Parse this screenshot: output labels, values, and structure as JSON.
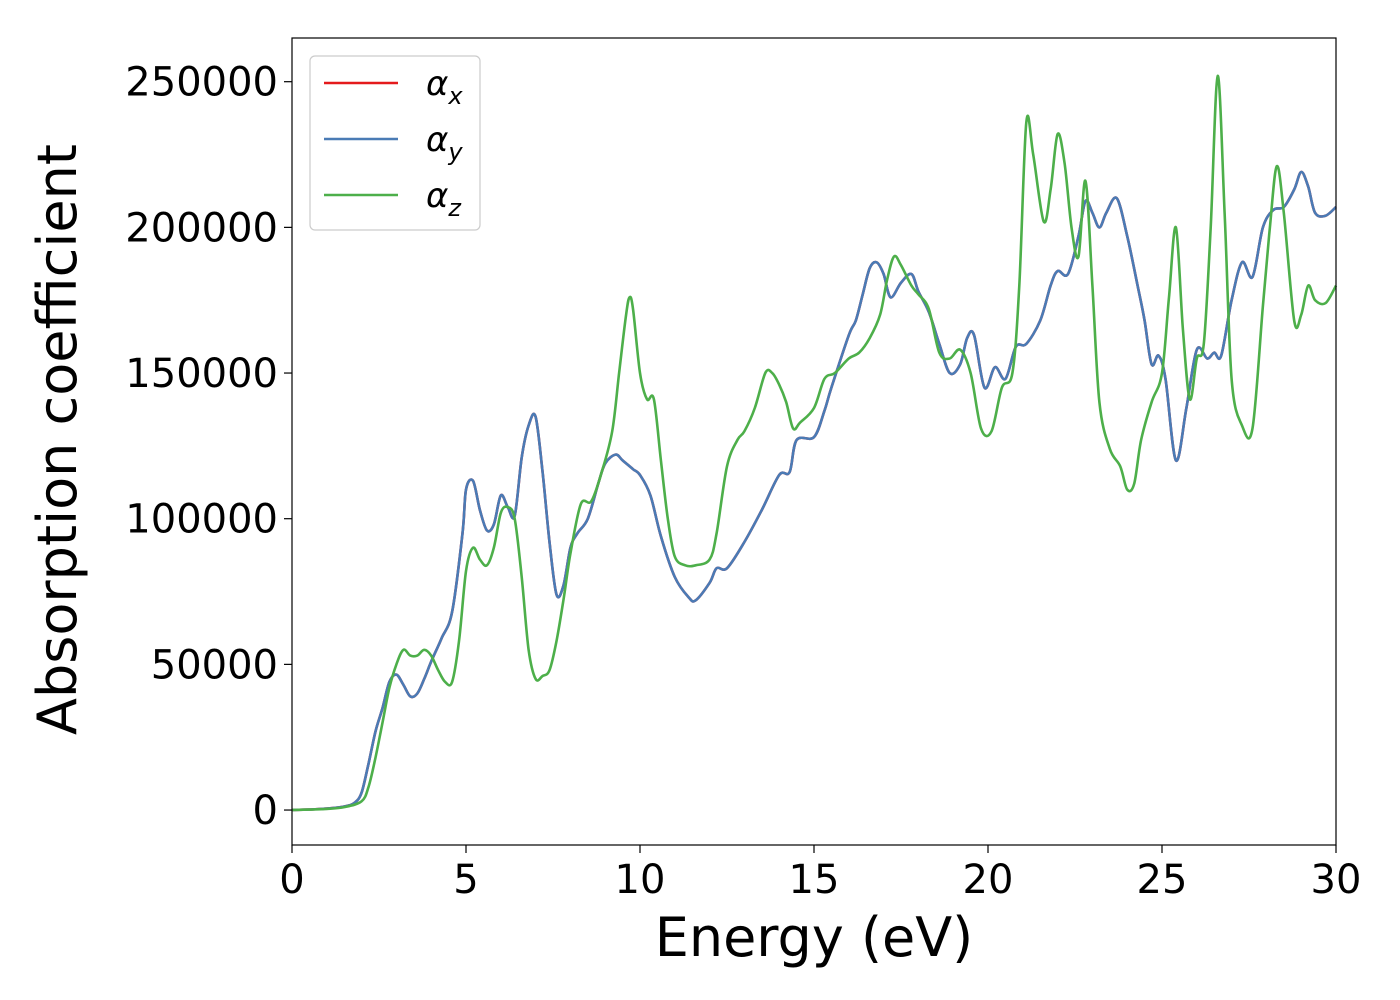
{
  "chart_data": {
    "type": "line",
    "title": "",
    "xlabel": "Energy (eV)",
    "ylabel": "Absorption coefficient",
    "xlim": [
      0,
      30
    ],
    "ylim": [
      -12000,
      265000
    ],
    "xticks": [
      0,
      5,
      10,
      15,
      20,
      25,
      30
    ],
    "yticks": [
      0,
      50000,
      100000,
      150000,
      200000,
      250000
    ],
    "grid": false,
    "legend_position": "top-left",
    "series": [
      {
        "name": "α_x",
        "symbol": "α",
        "subscript": "x",
        "color": "#e41a1c",
        "x": [
          0,
          0.5,
          1.0,
          1.5,
          1.8,
          2.0,
          2.2,
          2.4,
          2.6,
          2.8,
          3.0,
          3.2,
          3.4,
          3.6,
          3.8,
          4.0,
          4.3,
          4.6,
          4.9,
          5.0,
          5.2,
          5.4,
          5.6,
          5.8,
          6.0,
          6.2,
          6.4,
          6.6,
          6.8,
          7.0,
          7.2,
          7.4,
          7.6,
          7.8,
          8.0,
          8.2,
          8.5,
          8.8,
          9.0,
          9.3,
          9.5,
          9.8,
          10.0,
          10.3,
          10.6,
          11.0,
          11.4,
          11.6,
          12.0,
          12.2,
          12.5,
          13.0,
          13.5,
          14.0,
          14.3,
          14.5,
          15.0,
          15.3,
          15.5,
          16.0,
          16.2,
          16.4,
          16.6,
          16.8,
          17.0,
          17.2,
          17.5,
          17.8,
          18.0,
          18.3,
          18.6,
          18.9,
          19.2,
          19.4,
          19.6,
          19.9,
          20.2,
          20.5,
          20.8,
          21.1,
          21.5,
          21.8,
          22.0,
          22.3,
          22.6,
          22.8,
          23.0,
          23.2,
          23.4,
          23.7,
          24.0,
          24.3,
          24.5,
          24.7,
          24.9,
          25.1,
          25.4,
          25.7,
          26.0,
          26.3,
          26.5,
          26.7,
          27.0,
          27.3,
          27.6,
          27.9,
          28.2,
          28.5,
          28.8,
          29.0,
          29.2,
          29.4,
          29.7,
          30.0
        ],
        "values": [
          0,
          200,
          500,
          1200,
          2500,
          6000,
          16000,
          27000,
          35000,
          44000,
          46500,
          43000,
          39000,
          40000,
          45000,
          51000,
          59000,
          68000,
          95000,
          110000,
          113000,
          103000,
          96000,
          98000,
          108000,
          104000,
          101000,
          121000,
          132000,
          135000,
          116000,
          92000,
          74000,
          77000,
          90000,
          95000,
          100000,
          112000,
          119000,
          122000,
          120000,
          117000,
          115000,
          108000,
          94000,
          80000,
          73000,
          72000,
          78000,
          83000,
          83000,
          92000,
          103000,
          115000,
          116000,
          127000,
          128000,
          137000,
          145000,
          163000,
          168000,
          177000,
          186000,
          188000,
          184000,
          176000,
          181000,
          184000,
          178000,
          171000,
          160000,
          150000,
          153000,
          162000,
          163000,
          145000,
          152000,
          148000,
          159000,
          160000,
          168000,
          180000,
          185000,
          184000,
          197000,
          209000,
          205000,
          200000,
          205000,
          210000,
          197000,
          180000,
          168000,
          153000,
          156000,
          148000,
          120000,
          138000,
          158000,
          155000,
          157000,
          156000,
          175000,
          188000,
          183000,
          200000,
          206000,
          207000,
          213000,
          219000,
          214000,
          205000,
          204000,
          207000
        ]
      },
      {
        "name": "α_y",
        "symbol": "α",
        "subscript": "y",
        "color": "#4a7bb5",
        "x": [
          0,
          0.5,
          1.0,
          1.5,
          1.8,
          2.0,
          2.2,
          2.4,
          2.6,
          2.8,
          3.0,
          3.2,
          3.4,
          3.6,
          3.8,
          4.0,
          4.3,
          4.6,
          4.9,
          5.0,
          5.2,
          5.4,
          5.6,
          5.8,
          6.0,
          6.2,
          6.4,
          6.6,
          6.8,
          7.0,
          7.2,
          7.4,
          7.6,
          7.8,
          8.0,
          8.2,
          8.5,
          8.8,
          9.0,
          9.3,
          9.5,
          9.8,
          10.0,
          10.3,
          10.6,
          11.0,
          11.4,
          11.6,
          12.0,
          12.2,
          12.5,
          13.0,
          13.5,
          14.0,
          14.3,
          14.5,
          15.0,
          15.3,
          15.5,
          16.0,
          16.2,
          16.4,
          16.6,
          16.8,
          17.0,
          17.2,
          17.5,
          17.8,
          18.0,
          18.3,
          18.6,
          18.9,
          19.2,
          19.4,
          19.6,
          19.9,
          20.2,
          20.5,
          20.8,
          21.1,
          21.5,
          21.8,
          22.0,
          22.3,
          22.6,
          22.8,
          23.0,
          23.2,
          23.4,
          23.7,
          24.0,
          24.3,
          24.5,
          24.7,
          24.9,
          25.1,
          25.4,
          25.7,
          26.0,
          26.3,
          26.5,
          26.7,
          27.0,
          27.3,
          27.6,
          27.9,
          28.2,
          28.5,
          28.8,
          29.0,
          29.2,
          29.4,
          29.7,
          30.0
        ],
        "values": [
          0,
          200,
          500,
          1200,
          2500,
          6000,
          16000,
          27000,
          35000,
          44000,
          46500,
          43000,
          39000,
          40000,
          45000,
          51000,
          59000,
          68000,
          95000,
          110000,
          113000,
          103000,
          96000,
          98000,
          108000,
          104000,
          101000,
          121000,
          132000,
          135000,
          116000,
          92000,
          74000,
          77000,
          90000,
          95000,
          100000,
          112000,
          119000,
          122000,
          120000,
          117000,
          115000,
          108000,
          94000,
          80000,
          73000,
          72000,
          78000,
          83000,
          83000,
          92000,
          103000,
          115000,
          116000,
          127000,
          128000,
          137000,
          145000,
          163000,
          168000,
          177000,
          186000,
          188000,
          184000,
          176000,
          181000,
          184000,
          178000,
          171000,
          160000,
          150000,
          153000,
          162000,
          163000,
          145000,
          152000,
          148000,
          159000,
          160000,
          168000,
          180000,
          185000,
          184000,
          197000,
          209000,
          205000,
          200000,
          205000,
          210000,
          197000,
          180000,
          168000,
          153000,
          156000,
          148000,
          120000,
          138000,
          158000,
          155000,
          157000,
          156000,
          175000,
          188000,
          183000,
          200000,
          206000,
          207000,
          213000,
          219000,
          214000,
          205000,
          204000,
          207000
        ]
      },
      {
        "name": "α_z",
        "symbol": "α",
        "subscript": "z",
        "color": "#4daf4a",
        "x": [
          0,
          0.5,
          1.0,
          1.5,
          2.0,
          2.2,
          2.4,
          2.6,
          2.8,
          3.0,
          3.2,
          3.4,
          3.6,
          3.8,
          4.0,
          4.2,
          4.4,
          4.6,
          4.8,
          5.0,
          5.2,
          5.4,
          5.6,
          5.8,
          6.0,
          6.2,
          6.4,
          6.6,
          6.8,
          7.0,
          7.2,
          7.4,
          7.6,
          7.8,
          8.0,
          8.3,
          8.6,
          8.9,
          9.2,
          9.4,
          9.6,
          9.7,
          9.8,
          10.0,
          10.2,
          10.4,
          10.6,
          10.8,
          11.0,
          11.3,
          11.6,
          12.0,
          12.2,
          12.5,
          12.8,
          13.0,
          13.3,
          13.6,
          13.8,
          14.0,
          14.2,
          14.4,
          14.6,
          15.0,
          15.3,
          15.6,
          16.0,
          16.3,
          16.6,
          16.9,
          17.1,
          17.3,
          17.5,
          17.8,
          18.0,
          18.3,
          18.6,
          18.9,
          19.2,
          19.5,
          19.8,
          20.1,
          20.4,
          20.7,
          20.9,
          21.1,
          21.3,
          21.6,
          21.8,
          22.0,
          22.2,
          22.4,
          22.6,
          22.8,
          23.0,
          23.2,
          23.5,
          23.8,
          24.0,
          24.2,
          24.4,
          24.7,
          25.0,
          25.2,
          25.4,
          25.6,
          25.8,
          26.0,
          26.2,
          26.4,
          26.6,
          26.8,
          27.0,
          27.3,
          27.6,
          27.9,
          28.1,
          28.3,
          28.5,
          28.8,
          29.0,
          29.2,
          29.4,
          29.7,
          30.0
        ],
        "values": [
          0,
          150,
          400,
          1000,
          3000,
          8000,
          18000,
          30000,
          42000,
          50000,
          55000,
          53000,
          53000,
          55000,
          53000,
          48000,
          44000,
          44000,
          58000,
          82000,
          90000,
          86000,
          84000,
          90000,
          102000,
          104000,
          100000,
          80000,
          55000,
          45000,
          46000,
          48000,
          58000,
          72000,
          88000,
          105000,
          106000,
          116000,
          130000,
          150000,
          170000,
          176000,
          172000,
          150000,
          141000,
          141000,
          120000,
          100000,
          87000,
          84000,
          84000,
          86000,
          95000,
          118000,
          127000,
          130000,
          138000,
          150000,
          150000,
          146000,
          140000,
          131000,
          133000,
          138000,
          148000,
          150000,
          155000,
          157000,
          162000,
          170000,
          182000,
          190000,
          187000,
          180000,
          177000,
          172000,
          157000,
          155000,
          158000,
          150000,
          131000,
          130000,
          145000,
          150000,
          180000,
          236000,
          225000,
          202000,
          213000,
          232000,
          222000,
          200000,
          190000,
          216000,
          180000,
          140000,
          124000,
          118000,
          110000,
          112000,
          127000,
          140000,
          150000,
          176000,
          200000,
          165000,
          141000,
          155000,
          160000,
          200000,
          252000,
          205000,
          148000,
          132000,
          131000,
          173000,
          200000,
          221000,
          205000,
          168000,
          170000,
          180000,
          175000,
          174000,
          180000
        ]
      }
    ]
  }
}
